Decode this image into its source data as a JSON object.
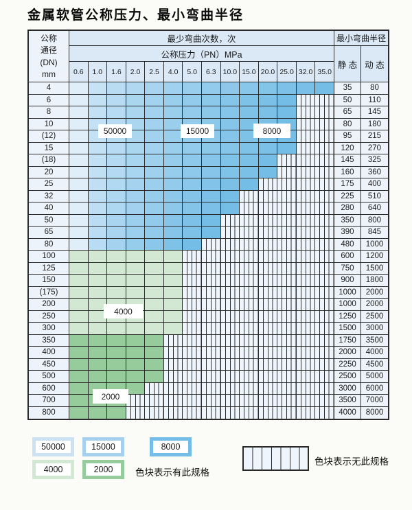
{
  "title": "金属软管公称压力、最小弯曲半径",
  "table": {
    "dn_header": [
      "公称",
      "通径",
      "(DN)",
      "mm"
    ],
    "cycles_header": "最少弯曲次数，次",
    "pressure_header": "公称压力（PN）MPa",
    "radius_header": "最小弯曲半径",
    "static_header": "静 态",
    "dynamic_header": "动 态",
    "pressures": [
      "0.6",
      "1.0",
      "1.6",
      "2.0",
      "2.5",
      "4.0",
      "5.0",
      "6.3",
      "10.0",
      "15.0",
      "20.0",
      "25.0",
      "32.0",
      "35.0"
    ],
    "zone_labels": [
      {
        "text": "50000"
      },
      {
        "text": "15000"
      },
      {
        "text": "8000"
      },
      {
        "text": "4000"
      },
      {
        "text": "2000"
      }
    ],
    "rows": [
      {
        "dn": "4",
        "span": 14,
        "palette": "blue",
        "static": "35",
        "dynamic": "80"
      },
      {
        "dn": "6",
        "span": 12,
        "palette": "blue",
        "static": "50",
        "dynamic": "110"
      },
      {
        "dn": "8",
        "span": 12,
        "palette": "blue",
        "static": "65",
        "dynamic": "145"
      },
      {
        "dn": "10",
        "span": 12,
        "palette": "blue",
        "static": "80",
        "dynamic": "180"
      },
      {
        "dn": "(12)",
        "span": 12,
        "palette": "blue",
        "static": "95",
        "dynamic": "215"
      },
      {
        "dn": "15",
        "span": 12,
        "palette": "blue",
        "static": "120",
        "dynamic": "270"
      },
      {
        "dn": "(18)",
        "span": 11,
        "palette": "blue",
        "static": "145",
        "dynamic": "325"
      },
      {
        "dn": "20",
        "span": 11,
        "palette": "blue",
        "static": "160",
        "dynamic": "360"
      },
      {
        "dn": "25",
        "span": 10,
        "palette": "blue",
        "static": "175",
        "dynamic": "400"
      },
      {
        "dn": "32",
        "span": 9,
        "palette": "blue",
        "static": "225",
        "dynamic": "510"
      },
      {
        "dn": "40",
        "span": 9,
        "palette": "blue",
        "static": "280",
        "dynamic": "640"
      },
      {
        "dn": "50",
        "span": 8,
        "palette": "blue",
        "static": "350",
        "dynamic": "800"
      },
      {
        "dn": "65",
        "span": 8,
        "palette": "blue",
        "static": "390",
        "dynamic": "845"
      },
      {
        "dn": "80",
        "span": 7,
        "palette": "blue",
        "static": "480",
        "dynamic": "1000"
      },
      {
        "dn": "100",
        "span": 6,
        "palette": "g4000",
        "static": "600",
        "dynamic": "1200"
      },
      {
        "dn": "125",
        "span": 6,
        "palette": "g4000",
        "static": "750",
        "dynamic": "1500"
      },
      {
        "dn": "150",
        "span": 6,
        "palette": "g4000",
        "static": "900",
        "dynamic": "1800"
      },
      {
        "dn": "(175)",
        "span": 6,
        "palette": "g4000",
        "static": "1000",
        "dynamic": "2000"
      },
      {
        "dn": "200",
        "span": 6,
        "palette": "g4000",
        "static": "1000",
        "dynamic": "2000"
      },
      {
        "dn": "250",
        "span": 6,
        "palette": "g4000",
        "static": "1250",
        "dynamic": "2500"
      },
      {
        "dn": "300",
        "span": 6,
        "palette": "g4000",
        "static": "1500",
        "dynamic": "3000"
      },
      {
        "dn": "350",
        "span": 5,
        "palette": "g2000",
        "static": "1750",
        "dynamic": "3500"
      },
      {
        "dn": "400",
        "span": 5,
        "palette": "g2000",
        "static": "2000",
        "dynamic": "4000"
      },
      {
        "dn": "450",
        "span": 5,
        "palette": "g2000",
        "static": "2250",
        "dynamic": "4500"
      },
      {
        "dn": "500",
        "span": 5,
        "palette": "g2000",
        "static": "2500",
        "dynamic": "5000"
      },
      {
        "dn": "600",
        "span": 4,
        "palette": "g2000",
        "static": "3000",
        "dynamic": "6000"
      },
      {
        "dn": "700",
        "span": 3,
        "palette": "g2000",
        "static": "3500",
        "dynamic": "7000"
      },
      {
        "dn": "800",
        "span": 3,
        "palette": "g2000",
        "static": "4000",
        "dynamic": "8000"
      }
    ]
  },
  "legend": {
    "items": [
      {
        "label": "50000",
        "color": "c50000"
      },
      {
        "label": "15000",
        "color": "c15000"
      },
      {
        "label": "8000",
        "color": "c8000"
      },
      {
        "label": "4000",
        "color": "c4000"
      },
      {
        "label": "2000",
        "color": "c2000"
      }
    ],
    "available_note": "色块表示有此规格",
    "unavailable_note": "色块表示无此规格"
  },
  "colors": {
    "page_bg": "#fbfbf8",
    "border": "#2b2b2b",
    "header_bg": "#dbe9f6",
    "dn_bg": "#edf3fa",
    "value_bg": "#eef3fa",
    "hatch_bg": "#eff5fc",
    "blue_light": "#e0eefa",
    "blue_dark": "#74bde6",
    "c50000": "#cbe2f5",
    "c15000": "#a6d1ee",
    "c8000": "#74bde6",
    "c4000": "#d3e8d2",
    "c2000": "#96cc9c"
  }
}
